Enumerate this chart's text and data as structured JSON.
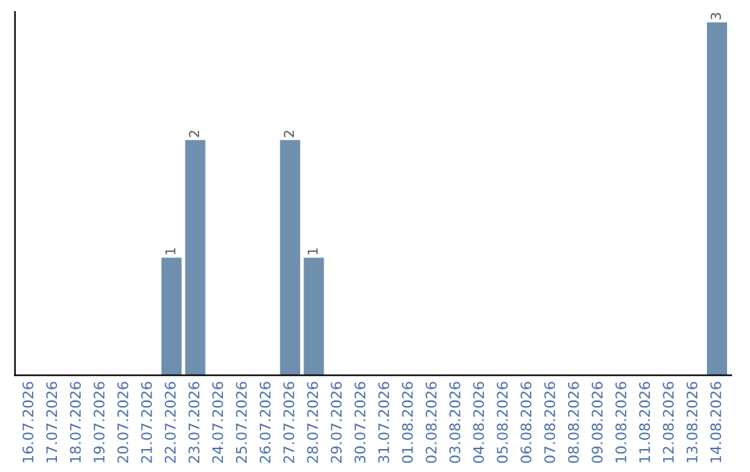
{
  "chart_data": {
    "type": "bar",
    "categories": [
      "16.07.2026",
      "17.07.2026",
      "18.07.2026",
      "19.07.2026",
      "20.07.2026",
      "21.07.2026",
      "22.07.2026",
      "23.07.2026",
      "24.07.2026",
      "25.07.2026",
      "26.07.2026",
      "27.07.2026",
      "28.07.2026",
      "29.07.2026",
      "30.07.2026",
      "31.07.2026",
      "01.08.2026",
      "02.08.2026",
      "03.08.2026",
      "04.08.2026",
      "05.08.2026",
      "06.08.2026",
      "07.08.2026",
      "08.08.2026",
      "09.08.2026",
      "10.08.2026",
      "11.08.2026",
      "12.08.2026",
      "13.08.2026",
      "14.08.2026"
    ],
    "values": [
      0,
      0,
      0,
      0,
      0,
      0,
      1,
      2,
      0,
      0,
      0,
      2,
      1,
      0,
      0,
      0,
      0,
      0,
      0,
      0,
      0,
      0,
      0,
      0,
      0,
      0,
      0,
      0,
      0,
      3
    ],
    "value_labels": [
      null,
      null,
      null,
      null,
      null,
      null,
      "1",
      "2",
      null,
      null,
      null,
      "2",
      "1",
      null,
      null,
      null,
      null,
      null,
      null,
      null,
      null,
      null,
      null,
      null,
      null,
      null,
      null,
      null,
      null,
      "3"
    ],
    "color": "#6f8fae",
    "tick_labels": "x",
    "grid": false,
    "legend": false
  }
}
